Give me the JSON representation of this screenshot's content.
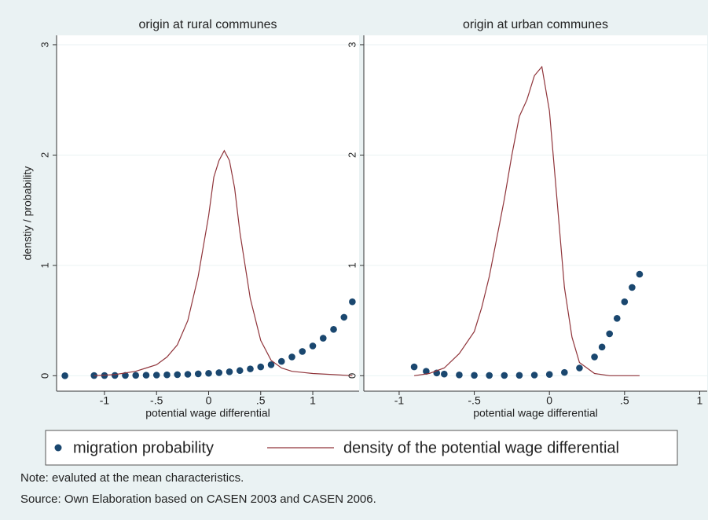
{
  "chart_data": [
    {
      "type": "scatter",
      "title": "origin at rural communes",
      "xlabel": "potential wage differential",
      "ylabel": "denstiy / probability",
      "xlim": [
        -1.46,
        1.445
      ],
      "ylim": [
        -0.14,
        3.085
      ],
      "xticks": [
        -1,
        {
          "value": -0.5,
          "label": "-.5"
        },
        0,
        {
          "value": 0.5,
          "label": ".5"
        },
        1
      ],
      "yticks": [
        0,
        1,
        2,
        3
      ],
      "grid": true,
      "series": [
        {
          "name": "migration probability",
          "type": "scatter",
          "color": "#1a476f",
          "x": [
            -1.38,
            -1.1,
            -1.0,
            -0.9,
            -0.8,
            -0.7,
            -0.6,
            -0.5,
            -0.4,
            -0.3,
            -0.2,
            -0.1,
            0,
            0.1,
            0.2,
            0.3,
            0.4,
            0.5,
            0.6,
            0.7,
            0.8,
            0.9,
            1.0,
            1.1,
            1.2,
            1.3,
            1.38
          ],
          "values": [
            0,
            0.002,
            0.002,
            0.003,
            0.003,
            0.004,
            0.005,
            0.006,
            0.008,
            0.01,
            0.013,
            0.017,
            0.022,
            0.028,
            0.036,
            0.047,
            0.062,
            0.08,
            0.1,
            0.13,
            0.17,
            0.22,
            0.27,
            0.34,
            0.42,
            0.53,
            0.67
          ]
        },
        {
          "name": "density of the potential wage differential",
          "type": "line",
          "color": "#90353b",
          "x": [
            -1.1,
            -0.9,
            -0.7,
            -0.6,
            -0.5,
            -0.4,
            -0.3,
            -0.2,
            -0.1,
            0,
            0.05,
            0.1,
            0.15,
            0.2,
            0.25,
            0.3,
            0.4,
            0.5,
            0.6,
            0.7,
            0.8,
            1.0,
            1.2,
            1.38
          ],
          "values": [
            0,
            0.01,
            0.04,
            0.07,
            0.1,
            0.17,
            0.28,
            0.5,
            0.9,
            1.45,
            1.8,
            1.95,
            2.04,
            1.95,
            1.7,
            1.3,
            0.7,
            0.32,
            0.14,
            0.07,
            0.04,
            0.02,
            0.01,
            0
          ]
        }
      ]
    },
    {
      "type": "scatter",
      "title": "origin at urban communes",
      "xlabel": "potential wage differential",
      "xlim": [
        -1.235,
        1.05
      ],
      "ylim": [
        -0.14,
        3.085
      ],
      "xticks": [
        -1,
        {
          "value": -0.5,
          "label": "-.5"
        },
        0,
        {
          "value": 0.5,
          "label": ".5"
        },
        1
      ],
      "yticks": [
        0,
        1,
        2,
        3
      ],
      "grid": true,
      "series": [
        {
          "type": "scatter",
          "color": "#1a476f",
          "x": [
            -0.9,
            -0.82,
            -0.75,
            -0.7,
            -0.6,
            -0.5,
            -0.4,
            -0.3,
            -0.2,
            -0.1,
            0,
            0.1,
            0.2,
            0.3,
            0.35,
            0.4,
            0.45,
            0.5,
            0.55,
            0.6
          ],
          "values": [
            0.08,
            0.04,
            0.025,
            0.015,
            0.007,
            0.004,
            0.003,
            0.003,
            0.004,
            0.006,
            0.012,
            0.03,
            0.07,
            0.17,
            0.26,
            0.38,
            0.52,
            0.67,
            0.8,
            0.92
          ]
        },
        {
          "type": "line",
          "color": "#90353b",
          "x": [
            -0.9,
            -0.8,
            -0.7,
            -0.6,
            -0.5,
            -0.45,
            -0.4,
            -0.35,
            -0.3,
            -0.25,
            -0.2,
            -0.15,
            -0.1,
            -0.05,
            0,
            0.05,
            0.1,
            0.15,
            0.2,
            0.3,
            0.4,
            0.6
          ],
          "values": [
            0,
            0.02,
            0.07,
            0.2,
            0.4,
            0.62,
            0.9,
            1.25,
            1.6,
            2.0,
            2.35,
            2.5,
            2.72,
            2.8,
            2.4,
            1.6,
            0.8,
            0.35,
            0.12,
            0.02,
            0,
            0
          ]
        }
      ]
    }
  ],
  "notes": [
    "Note: evaluted at the mean characteristics.",
    "Source: Own Elaboration based on CASEN 2003 and CASEN 2006."
  ]
}
